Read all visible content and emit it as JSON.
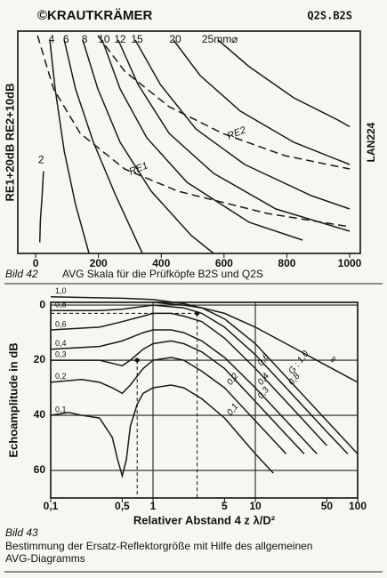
{
  "header": {
    "brand": "©KRAUTKRÄMER",
    "code": "Q2S.B2S"
  },
  "chart_data": [
    {
      "type": "line",
      "ylabel": "RE1+20dB RE2+10dB",
      "side_label": "LAN224",
      "figure_label": "Bild 42",
      "caption": [
        "AVG Skala für die Prüfköpfe B2S und Q2S"
      ],
      "xlim": [
        -57,
        1034
      ],
      "xticks": [
        0,
        200,
        400,
        600,
        800,
        1000
      ],
      "ylim": [
        0,
        100
      ],
      "grid": false,
      "color": "#1a1a1a",
      "series": [
        {
          "name": "2",
          "x": [
            25,
            20,
            15,
            13
          ],
          "values": [
            37,
            25,
            15,
            5
          ]
        },
        {
          "name": "4",
          "x": [
            45,
            62,
            91,
            127,
            170
          ],
          "values": [
            96,
            74,
            46,
            22,
            0
          ]
        },
        {
          "name": "6",
          "x": [
            91,
            127,
            184,
            255,
            340
          ],
          "values": [
            96,
            74,
            50,
            26,
            0
          ]
        },
        {
          "name": "8",
          "x": [
            150,
            198,
            269,
            368,
            496,
            567
          ],
          "values": [
            96,
            74,
            50,
            28,
            8,
            0
          ]
        },
        {
          "name": "10",
          "x": [
            212,
            269,
            354,
            482,
            680,
            850
          ],
          "values": [
            96,
            74,
            52,
            32,
            14,
            6
          ]
        },
        {
          "name": "12",
          "x": [
            263,
            326,
            425,
            567,
            765,
            1000
          ],
          "values": [
            96,
            76,
            54,
            36,
            20,
            10
          ]
        },
        {
          "name": "15",
          "x": [
            317,
            397,
            510,
            666,
            878,
            1000
          ],
          "values": [
            96,
            76,
            56,
            40,
            26,
            20
          ]
        },
        {
          "name": "20",
          "x": [
            439,
            524,
            652,
            822,
            1000
          ],
          "values": [
            96,
            80,
            64,
            50,
            40
          ]
        },
        {
          "name": "25mm⌀",
          "x": [
            581,
            680,
            822,
            963,
            1000
          ],
          "values": [
            96,
            84,
            70,
            60,
            57
          ]
        },
        {
          "name": "RE1",
          "dashed": true,
          "x": [
            6,
            57,
            142,
            283,
            453,
            737,
            1000
          ],
          "values": [
            98,
            74,
            54,
            38,
            28,
            18,
            12
          ]
        },
        {
          "name": "RE2",
          "dashed": true,
          "x": [
            198,
            283,
            425,
            595,
            793,
            1000
          ],
          "values": [
            98,
            82,
            66,
            54,
            44,
            38
          ]
        }
      ]
    },
    {
      "type": "line",
      "ylabel": "Echoamplitude in dB",
      "xlabel": "Relativer Abstand 4 z λ/D²",
      "figure_label": "Bild 43",
      "caption": [
        "Bestimmung der Ersatz-Reflektorgröße mit Hilfe des allgemeinen",
        "AVG-Diagramms"
      ],
      "xlog": true,
      "xlim": [
        0.1,
        100
      ],
      "xticks": [
        {
          "value": 0.1,
          "label": "0,1"
        },
        {
          "value": 0.5,
          "label": "0,5"
        },
        1,
        5,
        10,
        50,
        100
      ],
      "x_grid": [
        1,
        10
      ],
      "ylim": [
        70,
        -1
      ],
      "yticks": [
        0,
        20,
        40,
        60
      ],
      "grid": true,
      "color": "#1a1a1a",
      "series": [
        {
          "name": "1,0",
          "end_label": "G : 1,0",
          "x": [
            0.1,
            0.5,
            1,
            2,
            3,
            5,
            10,
            20,
            50,
            100
          ],
          "values": [
            -3,
            -2.5,
            -2,
            -0.5,
            1,
            5,
            14,
            26,
            42,
            54
          ]
        },
        {
          "name": "0,8",
          "end_label": "0,8",
          "x": [
            0.1,
            0.3,
            0.5,
            1,
            2,
            3,
            5,
            10,
            20,
            50,
            80
          ],
          "values": [
            2,
            2,
            1.5,
            0,
            1,
            3,
            8,
            18,
            30,
            46,
            54
          ]
        },
        {
          "name": "0,6",
          "end_label": "0,6",
          "x": [
            0.1,
            0.3,
            0.5,
            0.8,
            1,
            1.5,
            2,
            3,
            5,
            10,
            20,
            50
          ],
          "values": [
            9,
            8,
            6,
            4,
            3,
            3,
            4,
            6,
            12,
            23,
            35,
            51
          ]
        },
        {
          "name": "0,4",
          "end_label": "0,4",
          "x": [
            0.1,
            0.3,
            0.5,
            0.8,
            1,
            1.5,
            2,
            3,
            5,
            10,
            20,
            40
          ],
          "values": [
            16,
            15,
            13,
            10,
            9,
            9,
            10,
            13,
            19,
            30,
            42,
            54
          ]
        },
        {
          "name": "0,3",
          "end_label": "0,3",
          "x": [
            0.1,
            0.3,
            0.5,
            0.6,
            0.8,
            1,
            1.5,
            2,
            3,
            5,
            10,
            20,
            30
          ],
          "values": [
            20,
            20,
            22,
            20,
            16,
            14,
            13,
            14,
            17,
            23,
            35,
            47,
            54
          ]
        },
        {
          "name": "0,2",
          "end_label": "0,2",
          "x": [
            0.1,
            0.2,
            0.3,
            0.4,
            0.5,
            0.6,
            0.8,
            1,
            1.5,
            2,
            3,
            5,
            10,
            20
          ],
          "values": [
            28,
            27,
            28,
            30,
            32,
            29,
            23,
            20,
            19,
            20,
            24,
            30,
            42,
            54
          ]
        },
        {
          "name": "0,1",
          "end_label": "0,1",
          "x": [
            0.1,
            0.15,
            0.2,
            0.3,
            0.4,
            0.45,
            0.5,
            0.55,
            0.6,
            0.7,
            0.8,
            1,
            1.5,
            2,
            3,
            5,
            10,
            15
          ],
          "values": [
            40,
            39,
            40,
            41,
            48,
            56,
            62,
            56,
            44,
            36,
            32,
            30,
            29,
            30,
            34,
            41,
            54,
            61
          ]
        },
        {
          "end_label": "∞",
          "x": [
            1,
            2,
            3,
            5,
            10,
            20,
            50,
            100
          ],
          "values": [
            -1,
            0,
            1,
            3,
            8,
            14,
            22,
            28
          ]
        }
      ],
      "points": {
        "x": [
          0.7,
          2.7
        ],
        "values": [
          20,
          3
        ]
      }
    }
  ]
}
